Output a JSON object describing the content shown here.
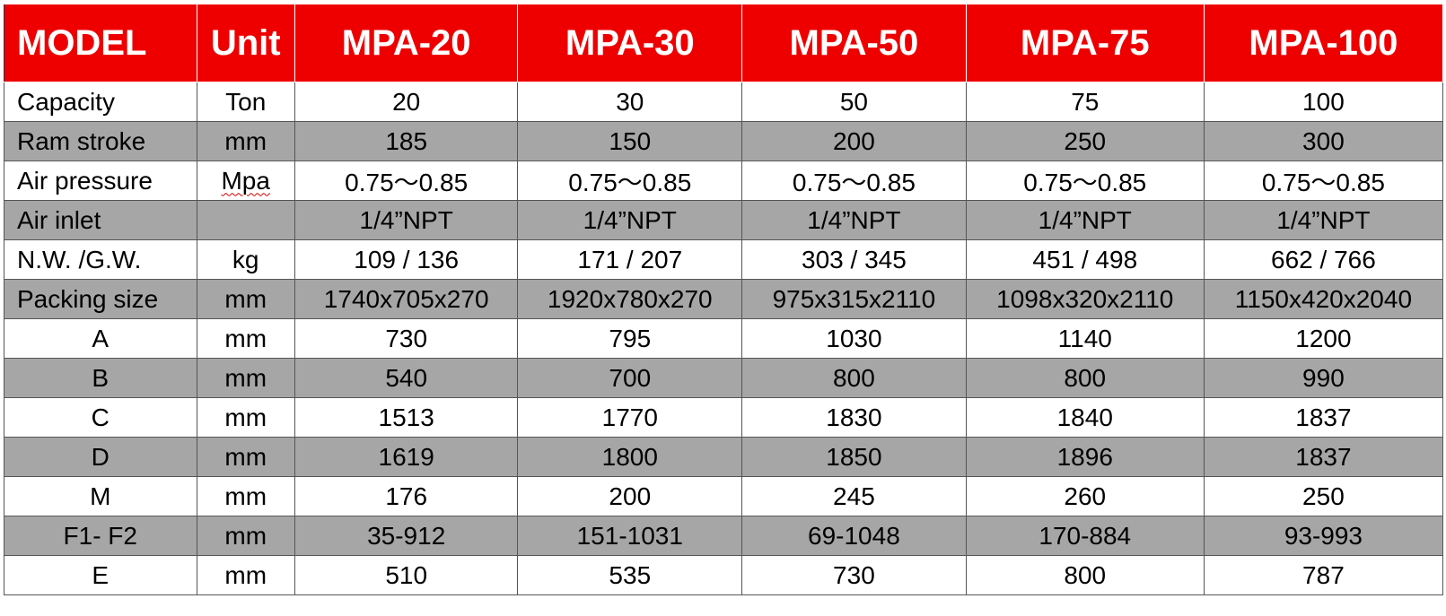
{
  "header": [
    "MODEL",
    "Unit",
    "MPA-20",
    "MPA-30",
    "MPA-50",
    "MPA-75",
    "MPA-100"
  ],
  "rows": [
    {
      "label": "Capacity",
      "unit": "Ton",
      "values": [
        "20",
        "30",
        "50",
        "75",
        "100"
      ],
      "align": "left",
      "shade": false
    },
    {
      "label": "Ram stroke",
      "unit": "mm",
      "values": [
        "185",
        "150",
        "200",
        "250",
        "300"
      ],
      "align": "left",
      "shade": true
    },
    {
      "label": "Air pressure",
      "unit": "Mpa",
      "values": [
        "0.75～0.85",
        "0.75～0.85",
        "0.75～0.85",
        "0.75～0.85",
        "0.75～0.85"
      ],
      "align": "left",
      "shade": false,
      "unit_squiggle": true
    },
    {
      "label": "Air inlet",
      "unit": "",
      "values": [
        "1/4”NPT",
        "1/4”NPT",
        "1/4”NPT",
        "1/4”NPT",
        "1/4”NPT"
      ],
      "align": "left",
      "shade": true
    },
    {
      "label": "N.W. /G.W.",
      "unit": "kg",
      "values": [
        "109 / 136",
        "171 / 207",
        "303 / 345",
        "451 / 498",
        "662 / 766"
      ],
      "align": "left",
      "shade": false
    },
    {
      "label": "Packing size",
      "unit": "mm",
      "values": [
        "1740x705x270",
        "1920x780x270",
        "975x315x2110",
        "1098x320x2110",
        "1150x420x2040"
      ],
      "align": "left",
      "shade": true
    },
    {
      "label": "A",
      "unit": "mm",
      "values": [
        "730",
        "795",
        "1030",
        "1140",
        "1200"
      ],
      "align": "center",
      "shade": false
    },
    {
      "label": "B",
      "unit": "mm",
      "values": [
        "540",
        "700",
        "800",
        "800",
        "990"
      ],
      "align": "center",
      "shade": true
    },
    {
      "label": "C",
      "unit": "mm",
      "values": [
        "1513",
        "1770",
        "1830",
        "1840",
        "1837"
      ],
      "align": "center",
      "shade": false
    },
    {
      "label": "D",
      "unit": "mm",
      "values": [
        "1619",
        "1800",
        "1850",
        "1896",
        "1837"
      ],
      "align": "center",
      "shade": true
    },
    {
      "label": "M",
      "unit": "mm",
      "values": [
        "176",
        "200",
        "245",
        "260",
        "250"
      ],
      "align": "center",
      "shade": false
    },
    {
      "label": "F1- F2",
      "unit": "mm",
      "values": [
        "35-912",
        "151-1031",
        "69-1048",
        "170-884",
        "93-993"
      ],
      "align": "center",
      "shade": true
    },
    {
      "label": "E",
      "unit": "mm",
      "values": [
        "510",
        "535",
        "730",
        "800",
        "787"
      ],
      "align": "center",
      "shade": false
    }
  ],
  "colors": {
    "header_bg": "#ee0000",
    "header_text": "#ffffff",
    "shade_row": "#a6a6a6",
    "plain_row": "#ffffff"
  }
}
